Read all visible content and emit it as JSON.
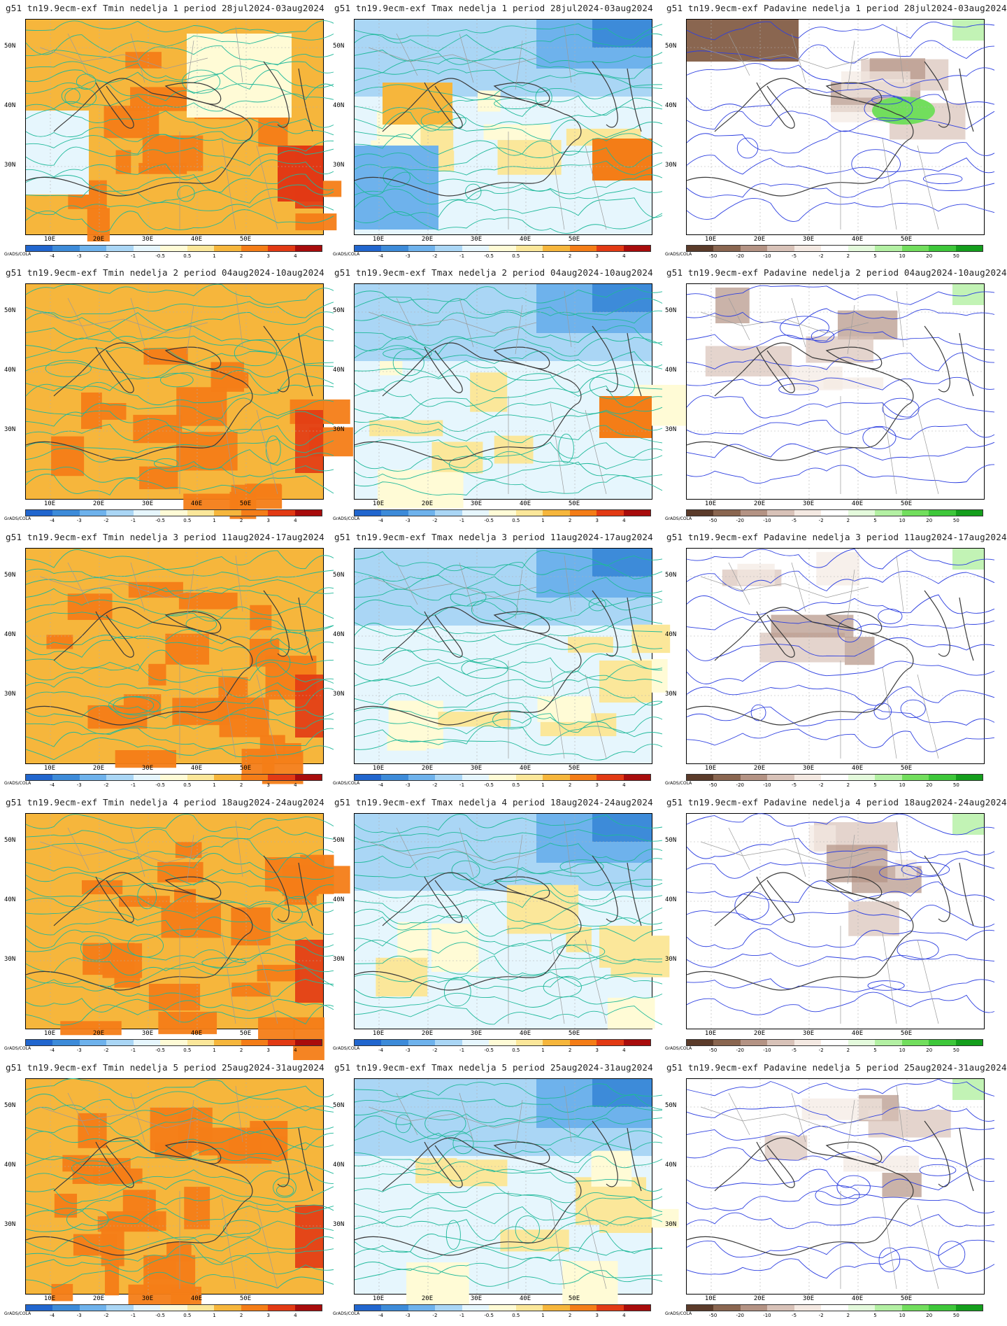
{
  "lat_labels": [
    "50N",
    "40N",
    "30N"
  ],
  "lon_labels": [
    "10E",
    "20E",
    "30E",
    "40E",
    "50E"
  ],
  "grads_label": "GrADS/COLA",
  "colorbars": {
    "temp": {
      "colors": [
        "#2166ce",
        "#3d8bd9",
        "#6eb2ec",
        "#aad6f5",
        "#e6f6fd",
        "#fffbd6",
        "#fbe79a",
        "#f6b63c",
        "#f47d17",
        "#e23a14",
        "#a80c0c"
      ],
      "labels": [
        "-4",
        "-3",
        "-2",
        "-1",
        "-0.5",
        "0.5",
        "1",
        "2",
        "3",
        "4"
      ]
    },
    "precip": {
      "colors": [
        "#5b3b2a",
        "#8a6650",
        "#b49384",
        "#d8c2b8",
        "#f4e9e2",
        "#ffffff",
        "#e4fadc",
        "#b3f0a3",
        "#72de5d",
        "#3ec73a",
        "#149e1c"
      ],
      "labels": [
        "-50",
        "-20",
        "-10",
        "-5",
        "-2",
        "2",
        "5",
        "10",
        "20",
        "50"
      ]
    }
  },
  "panels": [
    {
      "title": "g51 tn19.9ecm-exf Tmin nedelja 1 period 28jul2024-03aug2024",
      "variable": "Tmin",
      "week": 1,
      "scale": "temp"
    },
    {
      "title": "g51 tn19.9ecm-exf Tmax nedelja 1 period 28jul2024-03aug2024",
      "variable": "Tmax",
      "week": 1,
      "scale": "temp"
    },
    {
      "title": "g51 tn19.9ecm-exf Padavine nedelja 1 period 28jul2024-03aug2024",
      "variable": "Padavine",
      "week": 1,
      "scale": "precip"
    },
    {
      "title": "g51 tn19.9ecm-exf Tmin nedelja 2 period 04aug2024-10aug2024",
      "variable": "Tmin",
      "week": 2,
      "scale": "temp"
    },
    {
      "title": "g51 tn19.9ecm-exf Tmax nedelja 2 period 04aug2024-10aug2024",
      "variable": "Tmax",
      "week": 2,
      "scale": "temp"
    },
    {
      "title": "g51 tn19.9ecm-exf Padavine nedelja 2 period 04aug2024-10aug2024",
      "variable": "Padavine",
      "week": 2,
      "scale": "precip"
    },
    {
      "title": "g51 tn19.9ecm-exf Tmin nedelja 3 period 11aug2024-17aug2024",
      "variable": "Tmin",
      "week": 3,
      "scale": "temp"
    },
    {
      "title": "g51 tn19.9ecm-exf Tmax nedelja 3 period 11aug2024-17aug2024",
      "variable": "Tmax",
      "week": 3,
      "scale": "temp"
    },
    {
      "title": "g51 tn19.9ecm-exf Padavine nedelja 3 period 11aug2024-17aug2024",
      "variable": "Padavine",
      "week": 3,
      "scale": "precip"
    },
    {
      "title": "g51 tn19.9ecm-exf Tmin nedelja 4 period 18aug2024-24aug2024",
      "variable": "Tmin",
      "week": 4,
      "scale": "temp"
    },
    {
      "title": "g51 tn19.9ecm-exf Tmax nedelja 4 period 18aug2024-24aug2024",
      "variable": "Tmax",
      "week": 4,
      "scale": "temp"
    },
    {
      "title": "g51 tn19.9ecm-exf Padavine nedelja 4 period 18aug2024-24aug2024",
      "variable": "Padavine",
      "week": 4,
      "scale": "precip"
    },
    {
      "title": "g51 tn19.9ecm-exf Tmin nedelja 5 period 25aug2024-31aug2024",
      "variable": "Tmin",
      "week": 5,
      "scale": "temp"
    },
    {
      "title": "g51 tn19.9ecm-exf Tmax nedelja 5 period 25aug2024-31aug2024",
      "variable": "Tmax",
      "week": 5,
      "scale": "temp"
    },
    {
      "title": "g51 tn19.9ecm-exf Padavine nedelja 5 period 25aug2024-31aug2024",
      "variable": "Padavine",
      "week": 5,
      "scale": "precip"
    }
  ]
}
